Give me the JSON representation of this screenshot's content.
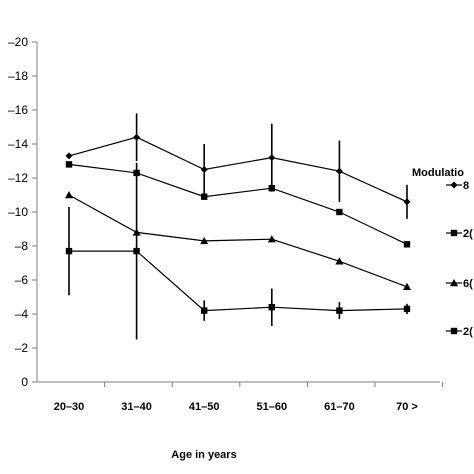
{
  "chart_data": {
    "type": "line",
    "title": "",
    "xlabel": "Age in years",
    "ylabel": "",
    "categories": [
      "20–30",
      "31–40",
      "41–50",
      "51–60",
      "61–70",
      "70 >"
    ],
    "ylim": [
      0,
      -20
    ],
    "yticks": [
      0,
      -2,
      -4,
      -6,
      -8,
      -10,
      -12,
      -14,
      -16,
      -18,
      -20
    ],
    "ytick_labels": [
      "0",
      "–2",
      "–4",
      "–6",
      "–8",
      "–10",
      "–12",
      "–14",
      "–16",
      "–18",
      "–20"
    ],
    "legend_title": "Modulatio",
    "legend_position": "right",
    "series": [
      {
        "name": "8",
        "marker": "diamond",
        "values": [
          -13.3,
          -14.4,
          -12.5,
          -13.2,
          -12.4,
          -10.6
        ],
        "errors": [
          0,
          1.4,
          1.5,
          2.0,
          1.8,
          1.0
        ]
      },
      {
        "name": "2(",
        "marker": "square",
        "values": [
          -12.8,
          -12.3,
          -10.9,
          -11.4,
          -10.0,
          -8.1
        ],
        "errors": [
          0,
          0,
          0,
          0,
          0,
          0
        ]
      },
      {
        "name": "6(",
        "marker": "triangle",
        "values": [
          -11.0,
          -8.8,
          -8.3,
          -8.4,
          -7.1,
          -5.6
        ],
        "errors": [
          0,
          0,
          0,
          0,
          0,
          0
        ]
      },
      {
        "name": "2(",
        "marker": "square",
        "values": [
          -7.7,
          -7.7,
          -4.2,
          -4.4,
          -4.2,
          -4.3
        ],
        "errors": [
          2.6,
          5.2,
          0.6,
          1.1,
          0.5,
          0.3
        ]
      }
    ]
  }
}
